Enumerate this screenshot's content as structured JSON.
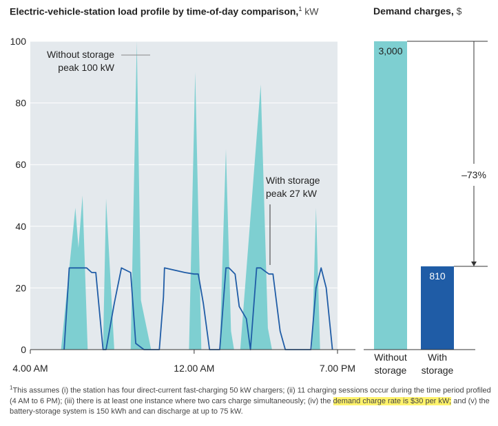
{
  "header": {
    "left_title": "Electric-vehicle-station load profile by time-of-day comparison,",
    "left_footnote_mark": "1",
    "left_unit": "kW",
    "right_title": "Demand charges,",
    "right_unit": "$"
  },
  "chart_data": [
    {
      "type": "area",
      "title": "Electric-vehicle-station load profile by time-of-day comparison, kW",
      "ylim": [
        0,
        100
      ],
      "yticks": [
        "0",
        "20",
        "40",
        "60",
        "80",
        "100"
      ],
      "xlim": [
        4,
        19
      ],
      "xticks": [
        {
          "x": 4,
          "label": "4.00 AM"
        },
        {
          "x": 12,
          "label": "12.00 AM"
        },
        {
          "x": 19,
          "label": "7.00 PM"
        }
      ],
      "grid": true,
      "series": [
        {
          "name": "Without storage",
          "color": "#7ecfd1",
          "x": [
            5.5,
            6.2,
            6.35,
            6.55,
            6.8,
            7.2,
            7.55,
            7.7,
            8.1,
            8.45,
            8.9,
            9.2,
            9.4,
            9.9,
            11.75,
            12.05,
            12.35,
            12.65,
            13.25,
            13.55,
            13.8,
            13.95,
            14.25,
            15.25,
            15.6,
            15.8,
            16.2,
            17.75,
            17.95,
            18.15
          ],
          "y": [
            0,
            46,
            33,
            50,
            0,
            0,
            0,
            49,
            0,
            0,
            0,
            100,
            16,
            0,
            0,
            90,
            0,
            0,
            0,
            65,
            6,
            0,
            0,
            86,
            7,
            0,
            0,
            0,
            46,
            0
          ]
        },
        {
          "name": "With storage",
          "color": "#1f5ca6",
          "x": [
            5.65,
            5.9,
            6.4,
            6.55,
            6.75,
            7.0,
            7.2,
            7.55,
            7.7,
            8.1,
            8.45,
            8.9,
            9.15,
            9.55,
            9.75,
            10.05,
            10.3,
            10.5,
            10.55,
            11.55,
            12.0,
            12.2,
            12.45,
            12.75,
            13.05,
            13.25,
            13.55,
            13.7,
            14.0,
            14.2,
            14.55,
            14.75,
            15.05,
            15.25,
            15.45,
            15.65,
            15.85,
            16.2,
            16.45,
            16.75,
            17.7,
            17.95,
            18.2,
            18.45,
            18.75
          ],
          "y": [
            0,
            26.5,
            26.5,
            26.5,
            26.5,
            25,
            25,
            0,
            0,
            15,
            26.5,
            25,
            2,
            0,
            0,
            0,
            0,
            17,
            26.5,
            25,
            24.5,
            24.5,
            15,
            0,
            0,
            0,
            26.5,
            26.5,
            24.5,
            14,
            10,
            0,
            26.5,
            26.5,
            25.5,
            24.5,
            24.5,
            6,
            0,
            0,
            0,
            20,
            26.5,
            20,
            0
          ]
        }
      ],
      "annotations": [
        {
          "line1": "Without storage",
          "line2": "peak 100 kW"
        },
        {
          "line1": "With storage",
          "line2": "peak 27 kW"
        }
      ]
    },
    {
      "type": "bar",
      "title": "Demand charges, $",
      "ylim": [
        0,
        3000
      ],
      "categories": [
        "Without storage",
        "With storage"
      ],
      "categories_lines": [
        [
          "Without",
          "storage"
        ],
        [
          "With",
          "storage"
        ]
      ],
      "values": [
        3000,
        810
      ],
      "value_labels": [
        "3,000",
        "810"
      ],
      "colors": [
        "#7ecfd1",
        "#1f5ca6"
      ],
      "change_label": "–73%"
    }
  ],
  "footnote": {
    "mark": "1",
    "text_before": "This assumes (i) the station has four direct-current fast-charging 50 kW chargers; (ii) 11 charging sessions occur during the time period profiled (4 AM to 6 PM); (iii) there is at least one instance where two cars charge simultaneously; (iv) the ",
    "highlight": "demand charge rate is $30 per kW;",
    "text_after": " and (v) the battery-storage system is 150 kWh and can discharge at up to 75 kW."
  }
}
